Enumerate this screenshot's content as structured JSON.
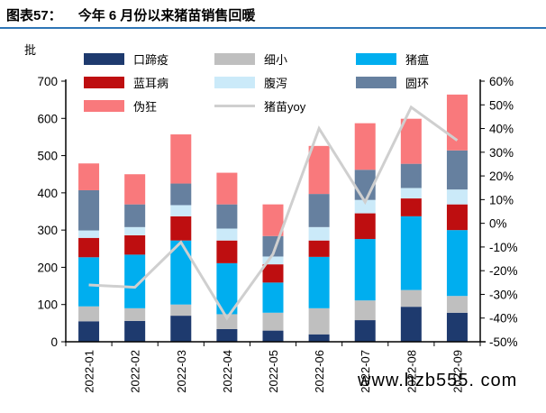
{
  "header": {
    "prefix": "图表57：",
    "title": "今年 6 月份以来猪苗销售回暖",
    "rule_color": "#2E75B6"
  },
  "watermark": "www.hzb555. com",
  "chart_data": {
    "type": "bar",
    "subtype": "stacked-bars-with-line",
    "title": "今年 6 月份以来猪苗销售回暖",
    "unit_left": "批",
    "grid": "off",
    "legend_position": "top",
    "categories": [
      "2022-01",
      "2022-02",
      "2022-03",
      "2022-04",
      "2022-05",
      "2022-06",
      "2022-07",
      "2022-08",
      "2022-09"
    ],
    "series": [
      {
        "name": "口蹄疫",
        "color": "#1E3A6E",
        "values": [
          55,
          56,
          70,
          34,
          30,
          20,
          58,
          94,
          78
        ]
      },
      {
        "name": "细小",
        "color": "#BFBFBF",
        "values": [
          40,
          34,
          30,
          40,
          48,
          70,
          53,
          45,
          45
        ]
      },
      {
        "name": "猪瘟",
        "color": "#00AEEF",
        "values": [
          132,
          144,
          172,
          137,
          81,
          138,
          165,
          198,
          177
        ]
      },
      {
        "name": "蓝耳病",
        "color": "#BE0E10",
        "values": [
          52,
          52,
          65,
          61,
          49,
          44,
          69,
          48,
          69
        ]
      },
      {
        "name": "腹泻",
        "color": "#CBEAF9",
        "values": [
          20,
          22,
          30,
          32,
          21,
          36,
          36,
          28,
          40
        ]
      },
      {
        "name": "圆环",
        "color": "#66809F",
        "values": [
          108,
          61,
          58,
          65,
          55,
          89,
          81,
          65,
          105
        ]
      },
      {
        "name": "伪狂",
        "color": "#F9797C",
        "values": [
          72,
          81,
          132,
          85,
          85,
          129,
          125,
          121,
          150
        ]
      }
    ],
    "bar_totals": [
      479,
      450,
      557,
      454,
      369,
      526,
      587,
      599,
      664
    ],
    "line_series": {
      "name": "猪苗yoy",
      "color": "#CFCFCF",
      "unit": "%",
      "values": [
        -26,
        -27,
        -8,
        -40,
        -13,
        40,
        9,
        49,
        35
      ]
    },
    "left_axis": {
      "min": 0,
      "max": 700,
      "ticks": [
        "0",
        "100",
        "200",
        "300",
        "400",
        "500",
        "600",
        "700"
      ]
    },
    "right_axis": {
      "min": -50,
      "max": 60,
      "ticks": [
        "-50%",
        "-40%",
        "-30%",
        "-20%",
        "-10%",
        "0%",
        "10%",
        "20%",
        "30%",
        "40%",
        "50%",
        "60%"
      ]
    },
    "axis_color": "#000000"
  }
}
